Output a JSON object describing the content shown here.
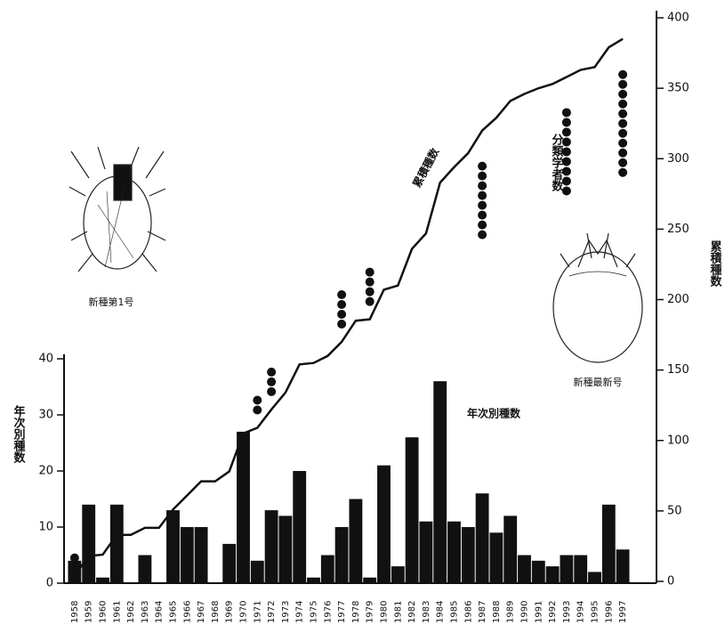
{
  "chart_data": {
    "type": "bar",
    "ylabel": "年次別種数",
    "y2label": "累積種数",
    "categories": [
      "1958",
      "1959",
      "1960",
      "1961",
      "1962",
      "1963",
      "1964",
      "1965",
      "1966",
      "1967",
      "1968",
      "1969",
      "1970",
      "1971",
      "1972",
      "1973",
      "1974",
      "1975",
      "1976",
      "1977",
      "1978",
      "1979",
      "1980",
      "1981",
      "1982",
      "1983",
      "1984",
      "1985",
      "1986",
      "1987",
      "1988",
      "1989",
      "1990",
      "1991",
      "1992",
      "1993",
      "1994",
      "1995",
      "1996",
      "1997"
    ],
    "series": [
      {
        "name": "年次別種数",
        "type": "bar",
        "color": "#111111",
        "values": [
          4,
          14,
          1,
          14,
          0,
          5,
          0,
          13,
          10,
          10,
          0,
          7,
          27,
          4,
          13,
          12,
          20,
          1,
          5,
          10,
          15,
          1,
          21,
          3,
          26,
          11,
          36,
          11,
          10,
          16,
          9,
          12,
          5,
          4,
          3,
          5,
          5,
          2,
          14,
          6
        ]
      },
      {
        "name": "累積種数",
        "type": "line",
        "axis": "y2",
        "color": "#111111",
        "values": [
          4,
          18,
          19,
          33,
          33,
          38,
          38,
          51,
          61,
          71,
          71,
          78,
          105,
          109,
          122,
          134,
          154,
          155,
          160,
          170,
          185,
          186,
          207,
          210,
          236,
          247,
          283,
          294,
          304,
          320,
          329,
          341,
          346,
          350,
          353,
          358,
          363,
          365,
          379,
          385
        ]
      },
      {
        "name": "分類学者数",
        "type": "dots",
        "color": "#111111",
        "values": [
          1,
          null,
          null,
          null,
          null,
          null,
          null,
          null,
          null,
          null,
          null,
          null,
          null,
          2,
          3,
          null,
          null,
          null,
          null,
          4,
          null,
          4,
          null,
          null,
          null,
          null,
          null,
          null,
          null,
          8,
          null,
          null,
          null,
          null,
          null,
          9,
          null,
          null,
          null,
          11
        ]
      }
    ],
    "ylim": [
      0,
      40
    ],
    "yticks": [
      0,
      10,
      20,
      30,
      40
    ],
    "y2lim": [
      0,
      400
    ],
    "y2ticks": [
      0,
      50,
      100,
      150,
      200,
      250,
      300,
      350,
      400
    ],
    "annotations": [
      "新種第1号",
      "新種最新号"
    ]
  }
}
